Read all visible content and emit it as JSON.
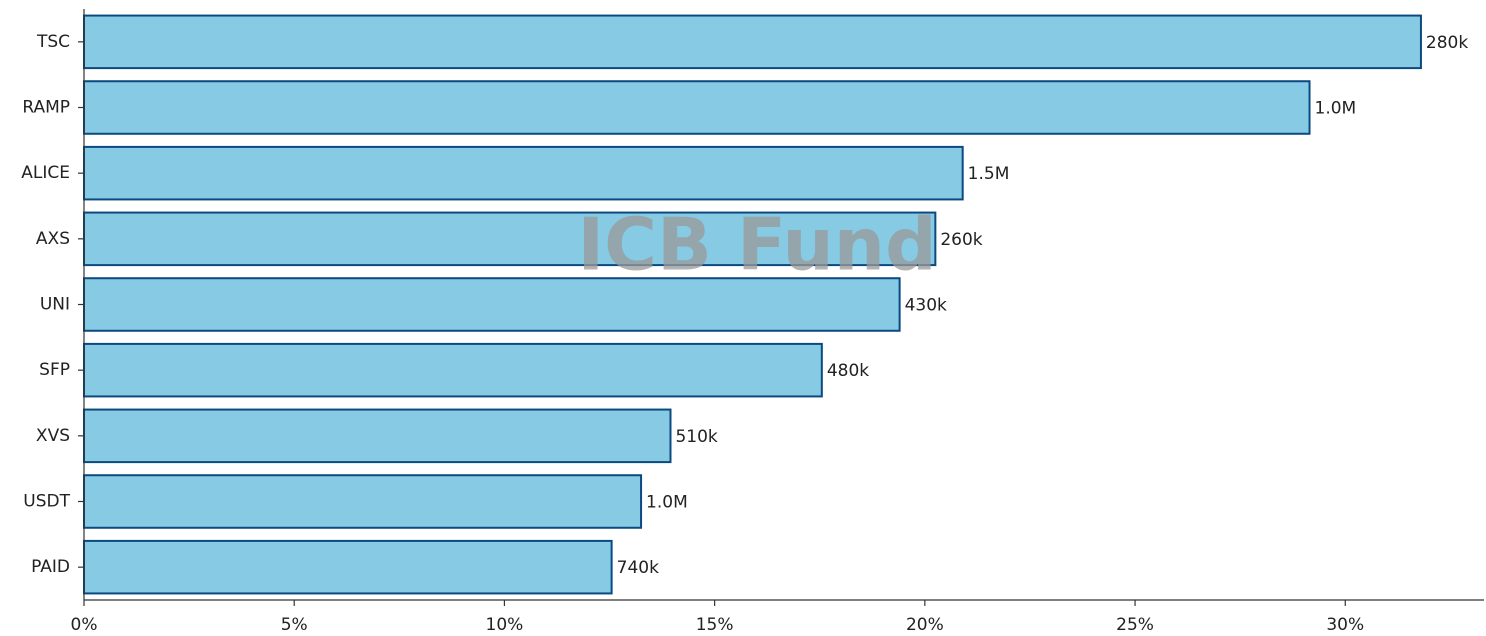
{
  "chart_data": {
    "type": "hbar",
    "watermark": "ICB Fund",
    "categories": [
      "TSC",
      "RAMP",
      "ALICE",
      "AXS",
      "UNI",
      "SFP",
      "XVS",
      "USDT",
      "PAID"
    ],
    "values": [
      31.8,
      29.15,
      20.9,
      20.25,
      19.4,
      17.55,
      13.95,
      13.25,
      12.55
    ],
    "bar_labels": [
      "280k",
      "1.0M",
      "1.5M",
      "260k",
      "430k",
      "480k",
      "510k",
      "1.0M",
      "740k"
    ],
    "color": "#87cae3",
    "edge_color": "#0b4a80",
    "xlim": [
      0,
      33.3
    ],
    "xticks": [
      {
        "value": 0,
        "label": "0%"
      },
      {
        "value": 5,
        "label": "5%"
      },
      {
        "value": 10,
        "label": "10%"
      },
      {
        "value": 15,
        "label": "15%"
      },
      {
        "value": 20,
        "label": "20%"
      },
      {
        "value": 25,
        "label": "25%"
      },
      {
        "value": 30,
        "label": "30%"
      }
    ],
    "grid": false
  }
}
